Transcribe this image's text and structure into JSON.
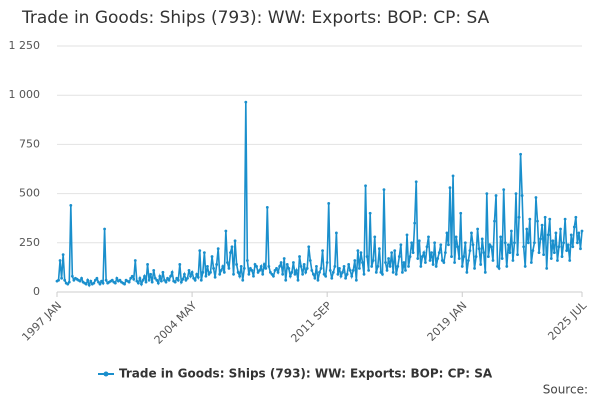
{
  "chart_data": {
    "type": "line",
    "title": "Trade in Goods: Ships (793): WW: Exports: BOP: CP: SA",
    "source": "Source:",
    "categories": [
      "1997 JAN",
      null,
      null,
      null,
      null,
      null,
      null,
      null,
      null,
      null,
      null,
      null,
      null,
      null,
      null,
      null,
      null,
      null,
      null,
      null,
      null,
      null,
      null,
      null,
      null,
      null,
      null,
      null,
      null,
      null,
      null,
      null,
      null,
      null,
      null,
      null,
      null,
      null,
      null,
      null,
      null,
      null,
      null,
      null,
      null,
      null,
      null,
      null,
      null,
      null,
      null,
      null,
      null,
      null,
      null,
      null,
      null,
      null,
      null,
      null,
      null,
      null,
      null,
      null,
      null,
      null,
      null,
      null,
      null,
      null,
      null,
      null,
      null,
      null,
      null,
      null,
      null,
      null,
      null,
      null,
      null,
      null,
      null,
      null,
      null,
      null,
      null,
      null,
      "2004 MAY",
      null,
      null,
      null,
      null,
      null,
      null,
      null,
      null,
      null,
      null,
      null,
      null,
      null,
      null,
      null,
      null,
      null,
      null,
      null,
      null,
      null,
      null,
      null,
      null,
      null,
      null,
      null,
      null,
      null,
      null,
      null,
      null,
      null,
      null,
      null,
      null,
      null,
      null,
      null,
      null,
      null,
      null,
      null,
      null,
      null,
      null,
      null,
      null,
      null,
      null,
      null,
      null,
      null,
      null,
      null,
      null,
      null,
      null,
      null,
      null,
      null,
      null,
      null,
      null,
      null,
      null,
      null,
      null,
      null,
      null,
      null,
      null,
      null,
      null,
      null,
      null,
      null,
      null,
      null,
      null,
      null,
      null,
      null,
      null,
      null,
      null,
      null,
      "2011 SEP",
      null,
      null,
      null,
      null,
      null,
      null,
      null,
      null,
      null,
      null,
      null,
      null,
      null,
      null,
      null,
      null,
      null,
      null,
      null,
      null,
      null,
      null,
      null,
      null,
      null,
      null,
      null,
      null,
      null,
      null,
      null,
      null,
      null,
      null,
      null,
      null,
      null,
      null,
      null,
      null,
      null,
      null,
      null,
      null,
      null,
      null,
      null,
      null,
      null,
      null,
      null,
      null,
      null,
      null,
      null,
      null,
      null,
      null,
      null,
      null,
      null,
      null,
      null,
      null,
      null,
      null,
      null,
      null,
      null,
      null,
      null,
      null,
      null,
      null,
      null,
      null,
      null,
      null,
      null,
      null,
      null,
      null,
      null,
      null,
      null,
      null,
      null,
      "2019 JAN",
      null,
      null,
      null,
      null,
      null,
      null,
      null,
      null,
      null,
      null,
      null,
      null,
      null,
      null,
      null,
      null,
      null,
      null,
      null,
      null,
      null,
      null,
      null,
      null,
      null,
      null,
      null,
      null,
      null,
      null,
      null,
      null,
      null,
      null,
      null,
      null,
      null,
      null,
      null,
      null,
      null,
      null,
      null,
      null,
      null,
      null,
      null,
      null,
      null,
      null,
      null,
      null,
      null,
      null,
      null,
      null,
      null,
      null,
      null,
      null,
      null,
      null,
      null,
      null,
      null,
      null,
      null,
      null,
      null,
      null,
      null,
      null,
      null,
      null,
      null,
      null,
      null,
      "2025 JUL"
    ],
    "series": [
      {
        "name": "Trade in Goods: Ships (793): WW: Exports: BOP: CP: SA",
        "color": "#1a8fcc",
        "values": [
          55,
          60,
          160,
          70,
          190,
          60,
          45,
          40,
          50,
          440,
          80,
          60,
          70,
          65,
          60,
          55,
          70,
          50,
          45,
          40,
          60,
          35,
          55,
          40,
          45,
          60,
          70,
          50,
          40,
          55,
          45,
          320,
          60,
          45,
          50,
          55,
          60,
          50,
          45,
          70,
          55,
          60,
          50,
          45,
          40,
          60,
          55,
          50,
          70,
          80,
          65,
          160,
          55,
          45,
          70,
          40,
          60,
          80,
          50,
          140,
          60,
          90,
          50,
          110,
          70,
          60,
          45,
          80,
          55,
          100,
          60,
          50,
          70,
          60,
          80,
          100,
          55,
          50,
          70,
          60,
          140,
          50,
          65,
          90,
          60,
          70,
          110,
          80,
          100,
          70,
          60,
          90,
          75,
          210,
          60,
          100,
          200,
          80,
          130,
          90,
          100,
          180,
          120,
          75,
          140,
          220,
          90,
          110,
          130,
          100,
          310,
          150,
          120,
          200,
          230,
          90,
          260,
          140,
          100,
          80,
          130,
          60,
          120,
          965,
          160,
          90,
          120,
          110,
          80,
          140,
          130,
          100,
          110,
          130,
          90,
          140,
          120,
          430,
          130,
          100,
          90,
          80,
          110,
          120,
          100,
          130,
          150,
          90,
          170,
          60,
          140,
          120,
          80,
          100,
          150,
          90,
          110,
          60,
          180,
          130,
          90,
          140,
          100,
          120,
          230,
          160,
          110,
          90,
          70,
          130,
          60,
          100,
          120,
          210,
          90,
          80,
          150,
          450,
          110,
          70,
          100,
          130,
          300,
          90,
          120,
          80,
          100,
          130,
          70,
          90,
          140,
          110,
          80,
          110,
          160,
          60,
          210,
          120,
          200,
          150,
          90,
          540,
          180,
          110,
          400,
          130,
          160,
          280,
          100,
          130,
          220,
          100,
          90,
          520,
          150,
          110,
          170,
          130,
          200,
          100,
          210,
          90,
          130,
          180,
          240,
          100,
          150,
          110,
          290,
          130,
          180,
          250,
          200,
          350,
          560,
          170,
          260,
          130,
          180,
          200,
          150,
          230,
          280,
          160,
          200,
          140,
          250,
          130,
          170,
          200,
          240,
          160,
          150,
          200,
          300,
          240,
          530,
          180,
          590,
          150,
          280,
          230,
          170,
          400,
          130,
          180,
          250,
          100,
          160,
          210,
          300,
          240,
          120,
          180,
          320,
          220,
          140,
          270,
          200,
          100,
          500,
          180,
          240,
          230,
          160,
          360,
          490,
          130,
          120,
          280,
          170,
          520,
          250,
          130,
          240,
          200,
          310,
          160,
          250,
          500,
          190,
          380,
          700,
          490,
          230,
          130,
          320,
          250,
          370,
          150,
          210,
          250,
          480,
          360,
          200,
          270,
          340,
          190,
          380,
          120,
          290,
          370,
          170,
          260,
          200,
          300,
          160,
          230,
          320,
          180,
          250,
          370,
          210,
          240,
          160,
          290,
          230,
          330,
          380,
          250,
          300,
          220,
          310
        ]
      }
    ],
    "ylim": [
      0,
      1250
    ],
    "yticks": [
      0,
      250,
      500,
      750,
      {
        "value": 1000,
        "label": "1 000"
      },
      {
        "value": 1250,
        "label": "1 250"
      }
    ],
    "grid": true,
    "legend": "bottom"
  }
}
